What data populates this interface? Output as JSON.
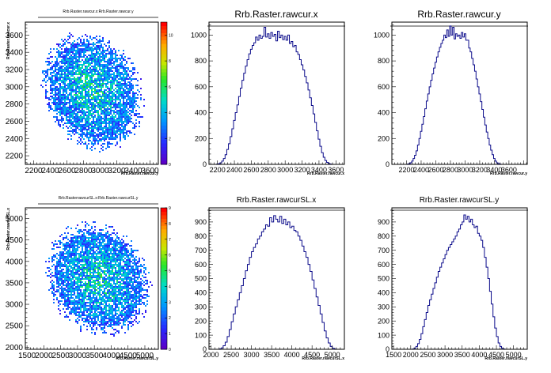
{
  "chart_data": [
    {
      "type": "heatmap",
      "title": "Rrb.Raster.rawcur.x:Rrb.Raster.rawcur.y",
      "xlabel": "Rrb.Raster.rawcur.y",
      "ylabel": "Rrb.Raster.rawcur.x",
      "xlim": [
        2100,
        3700
      ],
      "ylim": [
        2100,
        3750
      ],
      "xticks": [
        2200,
        2400,
        2600,
        2800,
        3000,
        3200,
        3400,
        3600
      ],
      "yticks": [
        2200,
        2400,
        2600,
        2800,
        3000,
        3200,
        3400,
        3600
      ],
      "xtick_labels": [
        "2200",
        "2400",
        "2600",
        "2800",
        "3000",
        "3200",
        "3400",
        "3600"
      ],
      "ytick_labels": [
        "2200",
        "2400",
        "2600",
        "2800",
        "3000",
        "3200",
        "3400",
        "3600"
      ],
      "colorbar": {
        "max": 11,
        "ticks": [
          0,
          2,
          4,
          6,
          8,
          10
        ]
      },
      "shape": "ellipse",
      "center": [
        2900,
        2950
      ],
      "radii": [
        570,
        700
      ],
      "rotation_deg": -25
    },
    {
      "type": "bar",
      "style": "step",
      "title": "Rrb.Raster.rawcur.x",
      "xlabel": "Rrb.Raster.rawcur.x",
      "xlim": [
        2100,
        3700
      ],
      "ylim": [
        0,
        1100
      ],
      "xticks": [
        2200,
        2400,
        2600,
        2800,
        3000,
        3200,
        3400,
        3600
      ],
      "yticks": [
        0,
        200,
        400,
        600,
        800,
        1000
      ],
      "x": [
        2140,
        2160,
        2180,
        2200,
        2220,
        2240,
        2260,
        2280,
        2300,
        2320,
        2340,
        2360,
        2380,
        2400,
        2420,
        2440,
        2460,
        2480,
        2500,
        2520,
        2540,
        2560,
        2580,
        2600,
        2620,
        2640,
        2660,
        2680,
        2700,
        2720,
        2740,
        2760,
        2780,
        2800,
        2820,
        2840,
        2860,
        2880,
        2900,
        2920,
        2940,
        2960,
        2980,
        3000,
        3020,
        3040,
        3060,
        3080,
        3100,
        3120,
        3140,
        3160,
        3180,
        3200,
        3220,
        3240,
        3260,
        3280,
        3300,
        3320,
        3340,
        3360,
        3380,
        3400,
        3420,
        3440,
        3460,
        3480,
        3500,
        3520,
        3540,
        3560,
        3580,
        3600,
        3620,
        3640,
        3660
      ],
      "values": [
        0,
        0,
        0,
        2,
        5,
        12,
        25,
        45,
        75,
        115,
        160,
        215,
        275,
        340,
        400,
        460,
        525,
        590,
        650,
        705,
        760,
        810,
        855,
        890,
        920,
        940,
        985,
        960,
        1000,
        975,
        990,
        1060,
        985,
        1010,
        975,
        1020,
        990,
        1005,
        955,
        1030,
        980,
        1000,
        965,
        990,
        960,
        1000,
        935,
        950,
        910,
        920,
        870,
        850,
        810,
        770,
        730,
        680,
        630,
        575,
        515,
        455,
        390,
        325,
        260,
        195,
        140,
        90,
        55,
        30,
        15,
        6,
        2,
        0,
        0,
        0,
        0,
        0,
        0
      ]
    },
    {
      "type": "bar",
      "style": "step",
      "title": "Rrb.Raster.rawcur.y",
      "xlabel": "Rrb.Raster.rawcur.y",
      "xlim": [
        2000,
        3850
      ],
      "ylim": [
        0,
        1100
      ],
      "xticks": [
        2200,
        2400,
        2600,
        2800,
        3000,
        3200,
        3400,
        3600
      ],
      "yticks": [
        0,
        200,
        400,
        600,
        800,
        1000
      ],
      "x": [
        2060,
        2080,
        2100,
        2120,
        2140,
        2160,
        2180,
        2200,
        2220,
        2240,
        2260,
        2280,
        2300,
        2320,
        2340,
        2360,
        2380,
        2400,
        2420,
        2440,
        2460,
        2480,
        2500,
        2520,
        2540,
        2560,
        2580,
        2600,
        2620,
        2640,
        2660,
        2680,
        2700,
        2720,
        2740,
        2760,
        2780,
        2800,
        2820,
        2840,
        2860,
        2880,
        2900,
        2920,
        2940,
        2960,
        2980,
        3000,
        3020,
        3040,
        3060,
        3080,
        3100,
        3120,
        3140,
        3160,
        3180,
        3200,
        3220,
        3240,
        3260,
        3280,
        3300,
        3320,
        3340,
        3360,
        3380,
        3400,
        3420,
        3440,
        3460,
        3480,
        3500,
        3520,
        3540,
        3560,
        3580,
        3600,
        3620,
        3640,
        3660,
        3680,
        3700,
        3720,
        3740,
        3760,
        3780
      ],
      "values": [
        0,
        0,
        0,
        0,
        0,
        0,
        0,
        0,
        2,
        5,
        12,
        25,
        45,
        70,
        105,
        150,
        200,
        255,
        310,
        370,
        430,
        490,
        545,
        600,
        650,
        700,
        745,
        790,
        830,
        870,
        905,
        935,
        960,
        1000,
        980,
        1040,
        990,
        1070,
        1000,
        1060,
        970,
        1010,
        990,
        1000,
        975,
        1020,
        985,
        1010,
        960,
        960,
        900,
        870,
        820,
        770,
        720,
        660,
        600,
        545,
        485,
        425,
        365,
        305,
        250,
        200,
        150,
        110,
        75,
        45,
        25,
        12,
        5,
        2,
        0,
        0,
        0,
        0,
        0,
        0,
        0,
        0,
        0,
        0,
        0,
        0,
        0,
        0,
        0
      ]
    },
    {
      "type": "heatmap",
      "title": "Rrb.RasterrawcurSL.x:Rrb.Raster.rawcurSL.y",
      "xlabel": "Rrb.Raster.rawcurSL.y",
      "ylabel": "Rrb.Raster.rawcurSL.x",
      "xlim": [
        1450,
        5400
      ],
      "ylim": [
        1950,
        5250
      ],
      "xticks": [
        1500,
        2000,
        2500,
        3000,
        3500,
        4000,
        4500,
        5000
      ],
      "yticks": [
        2000,
        2500,
        3000,
        3500,
        4000,
        4500,
        5000
      ],
      "xtick_labels": [
        "1500",
        "2000",
        "2500",
        "3000",
        "3500",
        "4000",
        "4500",
        "5000"
      ],
      "ytick_labels": [
        "2000",
        "2500",
        "3000",
        "3500",
        "4000",
        "4500",
        "5000"
      ],
      "colorbar": {
        "max": 9,
        "ticks": [
          0,
          1,
          2,
          3,
          4,
          5,
          6,
          7,
          8,
          9
        ]
      },
      "shape": "ellipse",
      "center": [
        3600,
        3600
      ],
      "radii": [
        1450,
        1350
      ],
      "rotation_deg": -30
    },
    {
      "type": "bar",
      "style": "step",
      "title": "Rrb.Raster.rawcurSL.x",
      "xlabel": "Rrb.Raster.rawcurSL.x",
      "xlim": [
        1950,
        5300
      ],
      "ylim": [
        0,
        1000
      ],
      "xticks": [
        2000,
        2500,
        3000,
        3500,
        4000,
        4500,
        5000
      ],
      "yticks": [
        0,
        100,
        200,
        300,
        400,
        500,
        600,
        700,
        800,
        900
      ],
      "x": [
        2025,
        2075,
        2125,
        2175,
        2225,
        2275,
        2325,
        2375,
        2425,
        2475,
        2525,
        2575,
        2625,
        2675,
        2725,
        2775,
        2825,
        2875,
        2925,
        2975,
        3025,
        3075,
        3125,
        3175,
        3225,
        3275,
        3325,
        3375,
        3425,
        3475,
        3525,
        3575,
        3625,
        3675,
        3725,
        3775,
        3825,
        3875,
        3925,
        3975,
        4025,
        4075,
        4125,
        4175,
        4225,
        4275,
        4325,
        4375,
        4425,
        4475,
        4525,
        4575,
        4625,
        4675,
        4725,
        4775,
        4825,
        4875,
        4925,
        4975,
        5025,
        5075,
        5125,
        5175,
        5225,
        5275
      ],
      "values": [
        0,
        0,
        0,
        0,
        3,
        10,
        25,
        50,
        90,
        140,
        195,
        250,
        300,
        350,
        400,
        450,
        500,
        555,
        600,
        650,
        690,
        720,
        745,
        780,
        800,
        830,
        850,
        880,
        870,
        930,
        900,
        945,
        920,
        900,
        940,
        890,
        920,
        880,
        900,
        860,
        870,
        840,
        830,
        800,
        770,
        730,
        690,
        650,
        600,
        550,
        490,
        430,
        370,
        310,
        250,
        190,
        130,
        80,
        45,
        20,
        8,
        2,
        0,
        0,
        0,
        0
      ]
    },
    {
      "type": "bar",
      "style": "step",
      "title": "Rrb.Raster.rawcurSL.y",
      "xlabel": "Rrb.Raster.rawcurSL.y",
      "xlim": [
        1450,
        5400
      ],
      "ylim": [
        0,
        1000
      ],
      "xticks": [
        1500,
        2000,
        2500,
        3000,
        3500,
        4000,
        4500,
        5000
      ],
      "yticks": [
        0,
        100,
        200,
        300,
        400,
        500,
        600,
        700,
        800,
        900
      ],
      "x": [
        1475,
        1525,
        1575,
        1625,
        1675,
        1725,
        1775,
        1825,
        1875,
        1925,
        1975,
        2025,
        2075,
        2125,
        2175,
        2225,
        2275,
        2325,
        2375,
        2425,
        2475,
        2525,
        2575,
        2625,
        2675,
        2725,
        2775,
        2825,
        2875,
        2925,
        2975,
        3025,
        3075,
        3125,
        3175,
        3225,
        3275,
        3325,
        3375,
        3425,
        3475,
        3525,
        3575,
        3625,
        3675,
        3725,
        3775,
        3825,
        3875,
        3925,
        3975,
        4025,
        4075,
        4125,
        4175,
        4225,
        4275,
        4325,
        4375,
        4425,
        4475,
        4525,
        4575,
        4625,
        4675,
        4725,
        4775,
        4825,
        4875,
        4925,
        4975,
        5025,
        5075,
        5125,
        5175,
        5225,
        5275,
        5325,
        5375
      ],
      "values": [
        0,
        0,
        0,
        0,
        0,
        0,
        0,
        0,
        0,
        0,
        0,
        0,
        2,
        8,
        20,
        40,
        70,
        110,
        160,
        210,
        260,
        310,
        350,
        390,
        430,
        470,
        510,
        550,
        580,
        610,
        640,
        670,
        700,
        720,
        740,
        760,
        780,
        800,
        830,
        850,
        880,
        900,
        950,
        920,
        940,
        900,
        920,
        880,
        860,
        870,
        820,
        800,
        770,
        720,
        650,
        580,
        500,
        410,
        320,
        230,
        150,
        90,
        45,
        20,
        8,
        2,
        0,
        0,
        0,
        0,
        0,
        0,
        0,
        0,
        0,
        0,
        0,
        0,
        0
      ]
    }
  ]
}
